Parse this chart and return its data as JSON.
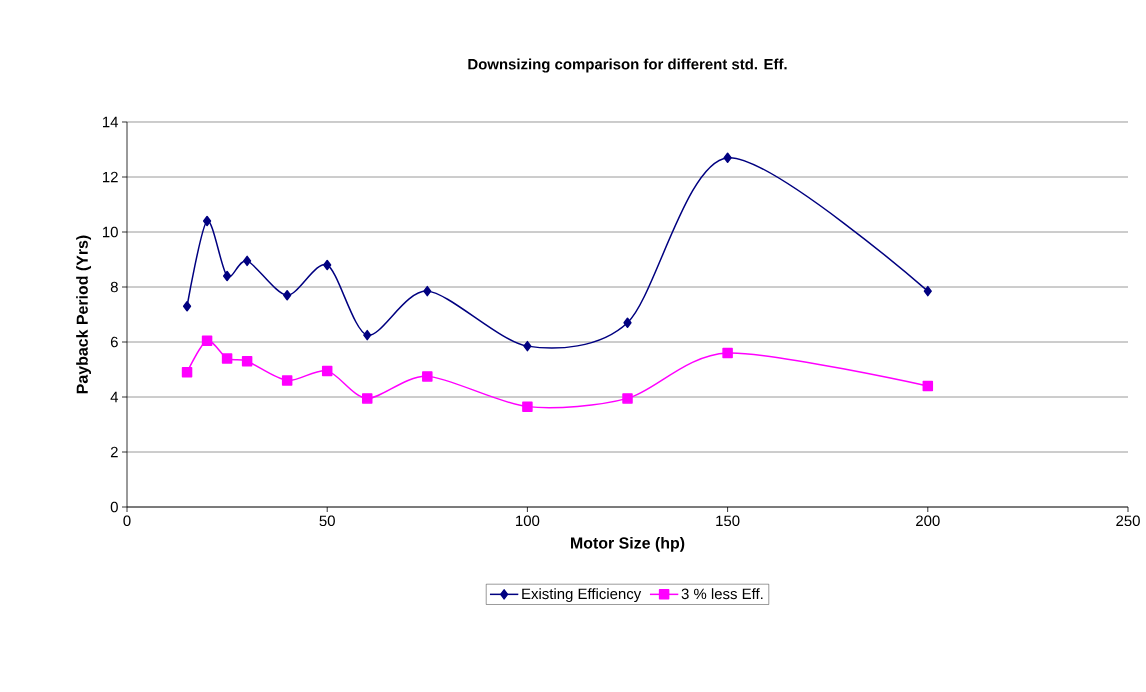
{
  "chart_data": {
    "type": "line",
    "title": "Downsizing comparison for different std. Eff.",
    "xlabel": "Motor Size (hp)",
    "ylabel": "Payback Period (Yrs)",
    "x": [
      15,
      20,
      25,
      30,
      40,
      50,
      60,
      75,
      100,
      125,
      150,
      200
    ],
    "series": [
      {
        "name": "Existing Efficiency",
        "color": "#000080",
        "marker": "diamond",
        "values": [
          7.3,
          10.4,
          8.4,
          8.95,
          7.7,
          8.8,
          6.25,
          7.85,
          5.85,
          6.7,
          12.7,
          7.85
        ]
      },
      {
        "name": "3 % less Eff.",
        "color": "#ff00ff",
        "marker": "square",
        "values": [
          4.9,
          6.05,
          5.4,
          5.3,
          4.6,
          4.95,
          3.95,
          4.75,
          3.65,
          3.95,
          5.6,
          4.4
        ]
      }
    ],
    "xlim": [
      0,
      250
    ],
    "xticks": [
      0,
      50,
      100,
      150,
      200,
      250
    ],
    "ylim": [
      0,
      14
    ],
    "yticks": [
      0,
      2,
      4,
      6,
      8,
      10,
      12,
      14
    ],
    "grid": "y",
    "legend": "bottom",
    "line_style": "solid"
  }
}
